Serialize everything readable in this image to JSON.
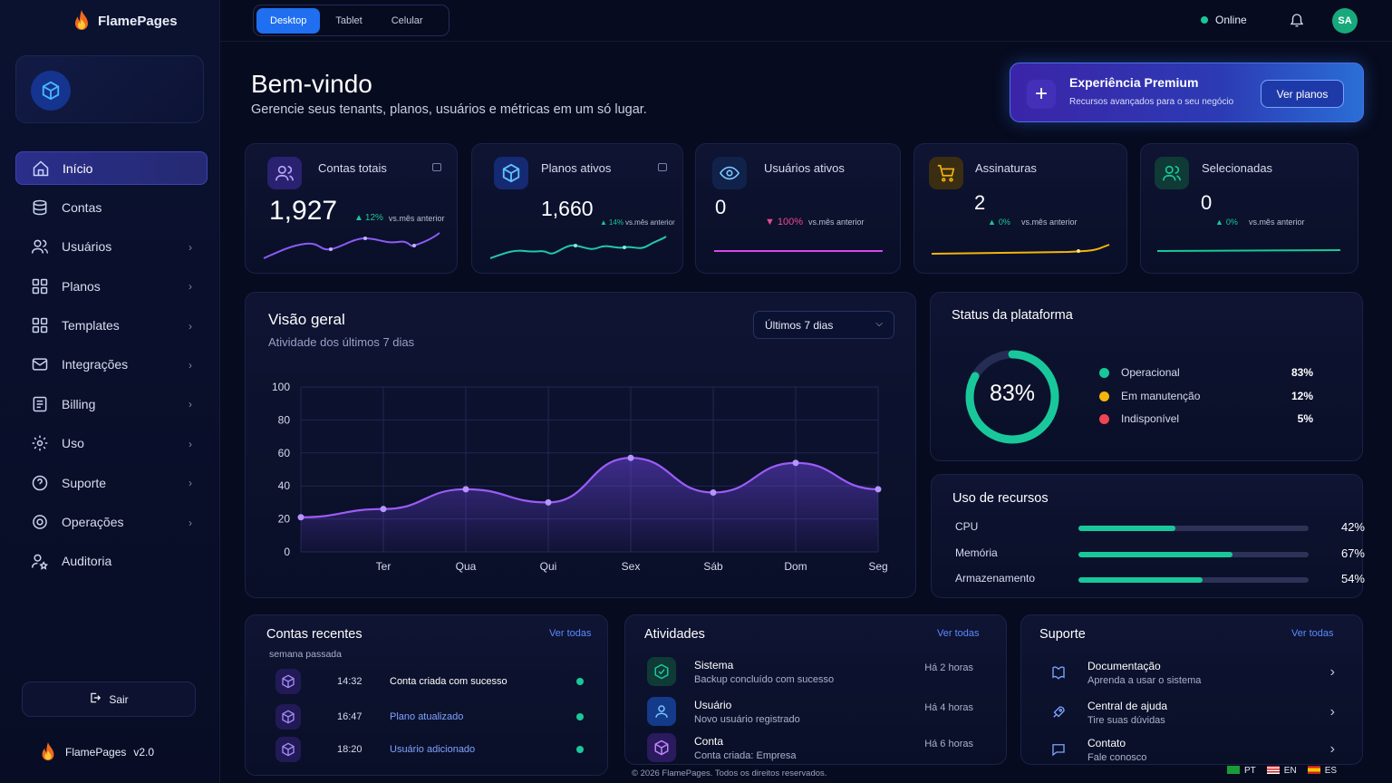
{
  "brand": {
    "name": "FlamePages",
    "version": "v2.0"
  },
  "sidebar": {
    "items": [
      {
        "label": "Início"
      },
      {
        "label": "Contas"
      },
      {
        "label": "Usuários"
      },
      {
        "label": "Planos"
      },
      {
        "label": "Templates"
      },
      {
        "label": "Integrações"
      },
      {
        "label": "Billing"
      },
      {
        "label": "Uso"
      },
      {
        "label": "Suporte"
      },
      {
        "label": "Operações"
      },
      {
        "label": "Auditoria"
      }
    ],
    "logout_label": "Sair"
  },
  "topbar": {
    "device_tabs": [
      "Desktop",
      "Tablet",
      "Celular"
    ],
    "status": "Online",
    "avatar_initials": "SA"
  },
  "welcome": {
    "title": "Bem-vindo",
    "subtitle": "Gerencie seus tenants, planos, usuários e métricas em um só lugar."
  },
  "premium": {
    "title": "Experiência Premium",
    "subtitle": "Recursos avançados para o seu negócio",
    "button": "Ver planos"
  },
  "stats": [
    {
      "label": "Contas totais",
      "value": "1,927",
      "change": "12%",
      "trend": "up",
      "compare": "vs.mês anterior",
      "color": "#8b5cf6"
    },
    {
      "label": "Planos ativos",
      "value": "1,660",
      "change": "14%",
      "trend": "up",
      "compare": "vs.mês anterior",
      "color": "#22c7a9"
    },
    {
      "label": "Usuários ativos",
      "value": "0",
      "change": "100%",
      "trend": "down",
      "compare": "vs.mês anterior",
      "color": "#ec4899"
    },
    {
      "label": "Assinaturas",
      "value": "2",
      "change": "0%",
      "trend": "up",
      "compare": "vs.mês anterior",
      "color": "#f5b40b"
    },
    {
      "label": "Selecionadas",
      "value": "0",
      "change": "0%",
      "trend": "up",
      "compare": "vs.mês anterior",
      "color": "#19c89a"
    }
  ],
  "overview": {
    "title": "Visão geral",
    "subtitle": "Atividade dos últimos 7 dias",
    "range_select": "Últimos 7 dias"
  },
  "chart_data": {
    "type": "area",
    "title": "Visão geral",
    "x": [
      "",
      "Ter",
      "Qua",
      "Qui",
      "Sex",
      "Sáb",
      "Dom",
      "Seg"
    ],
    "y_ticks": [
      0,
      20,
      40,
      60,
      80,
      100
    ],
    "ylim": [
      0,
      100
    ],
    "series": [
      {
        "values": [
          21,
          26,
          38,
          30,
          57,
          36,
          54,
          38
        ],
        "color": "#9b5cf6"
      }
    ],
    "grid": true
  },
  "platform_status": {
    "title": "Status da plataforma",
    "donut_value": "83%",
    "donut_fraction": 0.83,
    "items": [
      {
        "label": "Operacional",
        "pct": "83%",
        "color": "#19c89a"
      },
      {
        "label": "Em manutenção",
        "pct": "12%",
        "color": "#f5b40b"
      },
      {
        "label": "Indisponível",
        "pct": "5%",
        "color": "#ef4455"
      }
    ]
  },
  "resources": {
    "title": "Uso de recursos",
    "items": [
      {
        "label": "CPU",
        "pct": "42%",
        "fraction": 0.42
      },
      {
        "label": "Memória",
        "pct": "67%",
        "fraction": 0.67
      },
      {
        "label": "Armazenamento",
        "pct": "54%",
        "fraction": 0.54
      }
    ]
  },
  "recent_accounts": {
    "title": "Contas recentes",
    "link": "Ver todas",
    "period": "semana passada",
    "rows": [
      {
        "time": "14:32",
        "text": "Conta criada com sucesso"
      },
      {
        "time": "16:47",
        "text": "Plano atualizado"
      },
      {
        "time": "18:20",
        "text": "Usuário adicionado"
      }
    ]
  },
  "activities": {
    "title": "Atividades",
    "link": "Ver todas",
    "rows": [
      {
        "title": "Sistema",
        "desc": "Backup concluído com sucesso",
        "time": "Há 2 horas"
      },
      {
        "title": "Usuário",
        "desc": "Novo usuário registrado",
        "time": "Há 4 horas"
      },
      {
        "title": "Conta",
        "desc": "Conta criada: Empresa",
        "time": "Há 6 horas"
      }
    ]
  },
  "support": {
    "title": "Suporte",
    "link": "Ver todas",
    "rows": [
      {
        "title": "Documentação",
        "desc": "Aprenda a usar o sistema"
      },
      {
        "title": "Central de ajuda",
        "desc": "Tire suas dúvidas"
      },
      {
        "title": "Contato",
        "desc": "Fale conosco"
      }
    ]
  },
  "footer": {
    "copyright": "© 2026 FlamePages. Todos os direitos reservados.",
    "languages": [
      "PT",
      "EN",
      "ES"
    ]
  }
}
